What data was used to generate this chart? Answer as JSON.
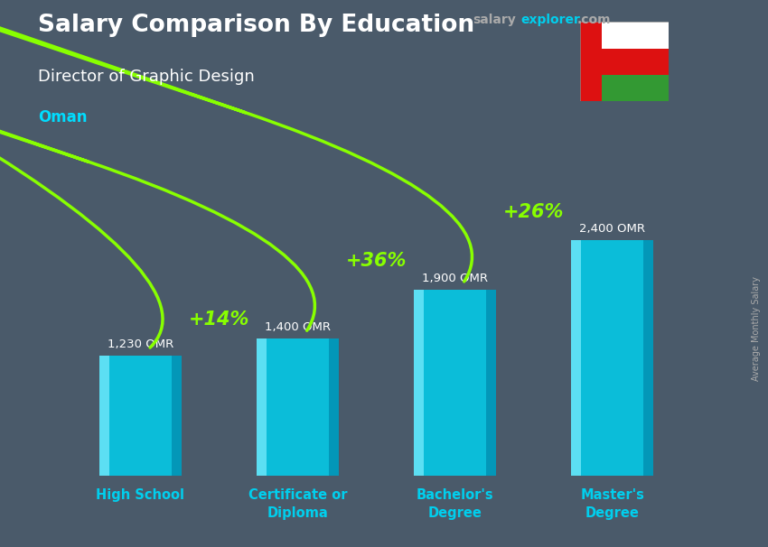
{
  "title": "Salary Comparison By Education",
  "subtitle": "Director of Graphic Design",
  "country": "Oman",
  "ylabel": "Average Monthly Salary",
  "categories": [
    "High School",
    "Certificate or\nDiploma",
    "Bachelor's\nDegree",
    "Master's\nDegree"
  ],
  "values": [
    1230,
    1400,
    1900,
    2400
  ],
  "value_labels": [
    "1,230 OMR",
    "1,400 OMR",
    "1,900 OMR",
    "2,400 OMR"
  ],
  "pct_labels": [
    "+14%",
    "+36%",
    "+26%"
  ],
  "bar_color": "#00cfee",
  "bar_highlight": "#80eeff",
  "bar_shadow": "#0088aa",
  "bg_color": "#4a5a6a",
  "title_color": "#ffffff",
  "subtitle_color": "#ffffff",
  "country_color": "#00ddff",
  "value_color": "#ffffff",
  "pct_color": "#88ff00",
  "arrow_color": "#88ff00",
  "xlabel_color": "#00cfee",
  "site_salary_color": "#aaaaaa",
  "site_explorer_color": "#00cfee",
  "site_com_color": "#aaaaaa",
  "ylabel_color": "#aaaaaa",
  "ylim": [
    0,
    2900
  ],
  "bar_width": 0.52,
  "flag_red": "#dd1111",
  "flag_white": "#ffffff",
  "flag_green": "#339933"
}
